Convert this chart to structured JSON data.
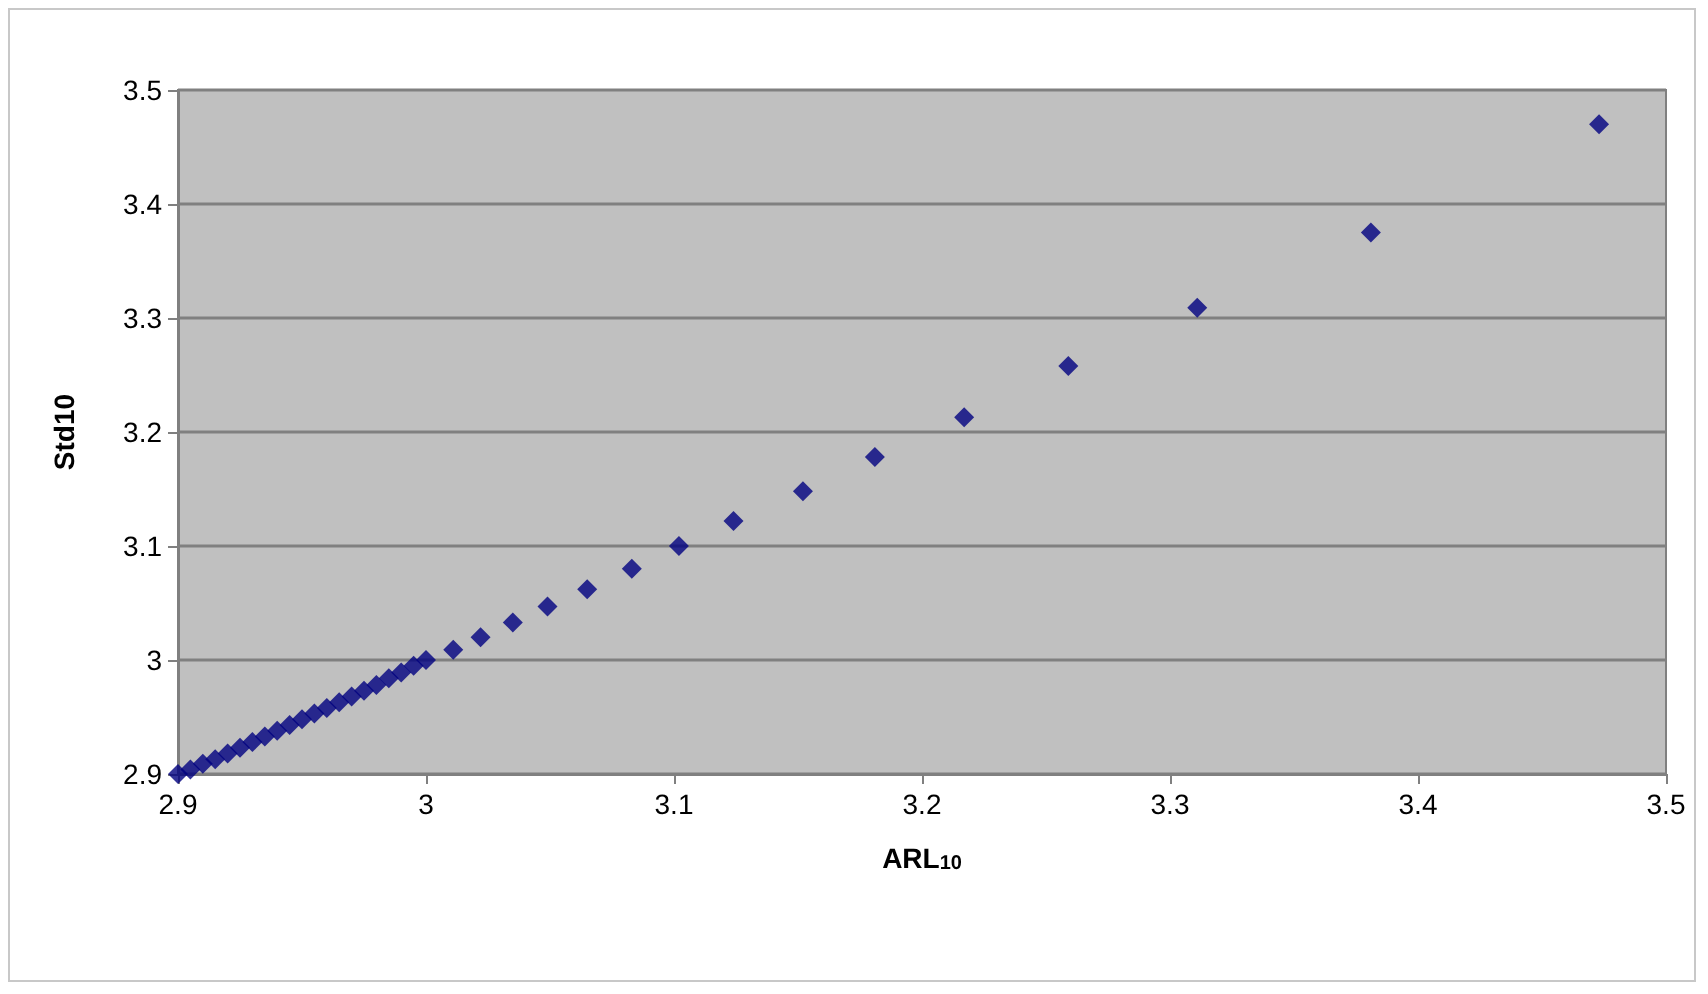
{
  "chart_data": {
    "type": "scatter",
    "xlabel": "ARL$_{10}$",
    "ylabel": "Std10",
    "x": [
      2.9,
      2.905,
      2.91,
      2.915,
      2.92,
      2.925,
      2.93,
      2.935,
      2.94,
      2.945,
      2.95,
      2.955,
      2.96,
      2.965,
      2.97,
      2.975,
      2.98,
      2.985,
      2.99,
      2.995,
      3.0,
      3.011,
      3.022,
      3.035,
      3.049,
      3.065,
      3.083,
      3.102,
      3.124,
      3.152,
      3.181,
      3.217,
      3.259,
      3.311,
      3.381,
      3.473
    ],
    "values": [
      2.9,
      2.904,
      2.909,
      2.913,
      2.918,
      2.923,
      2.928,
      2.933,
      2.938,
      2.943,
      2.948,
      2.953,
      2.958,
      2.963,
      2.968,
      2.973,
      2.978,
      2.984,
      2.989,
      2.995,
      3.0,
      3.009,
      3.02,
      3.033,
      3.047,
      3.062,
      3.08,
      3.1,
      3.122,
      3.148,
      3.178,
      3.213,
      3.258,
      3.309,
      3.375,
      3.47
    ],
    "color": "#000080",
    "marker": "diamond",
    "xlim": [
      2.9,
      3.5
    ],
    "ylim": [
      2.9,
      3.5
    ],
    "xticks": [
      2.9,
      3,
      3.1,
      3.2,
      3.3,
      3.4,
      3.5
    ],
    "yticks": [
      2.9,
      3,
      3.1,
      3.2,
      3.3,
      3.4,
      3.5
    ],
    "grid": "y"
  }
}
